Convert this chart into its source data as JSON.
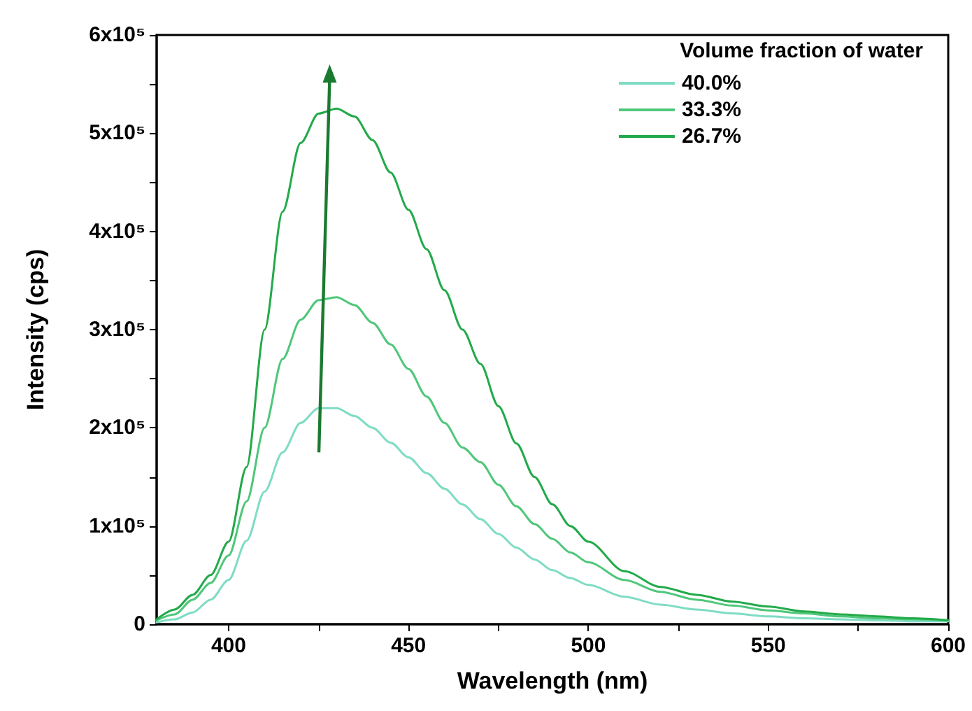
{
  "chart_data": {
    "type": "line",
    "xlabel": "Wavelength (nm)",
    "ylabel": "Intensity (cps)",
    "legend_title": "Volume fraction of water",
    "legend": "top right",
    "grid": false,
    "marker": "none",
    "line_style": "solid",
    "x": [
      380,
      385,
      390,
      395,
      400,
      405,
      410,
      415,
      420,
      425,
      430,
      435,
      440,
      445,
      450,
      455,
      460,
      465,
      470,
      475,
      480,
      485,
      490,
      495,
      500,
      510,
      520,
      530,
      540,
      550,
      560,
      570,
      580,
      590,
      600
    ],
    "xlim": [
      380,
      600
    ],
    "xticks": [
      400,
      {
        "value": 425,
        "label": null
      },
      450,
      {
        "value": 475,
        "label": null
      },
      500,
      {
        "value": 525,
        "label": null
      },
      550,
      {
        "value": 575,
        "label": null
      },
      600
    ],
    "ylim": [
      0,
      600000
    ],
    "yticks": [
      {
        "value": 0,
        "label": "0"
      },
      {
        "value": 50000,
        "label": null
      },
      {
        "value": 100000,
        "label": "1x10⁵"
      },
      {
        "value": 150000,
        "label": null
      },
      {
        "value": 200000,
        "label": "2x10⁵"
      },
      {
        "value": 250000,
        "label": null
      },
      {
        "value": 300000,
        "label": "3x10⁵"
      },
      {
        "value": 350000,
        "label": null
      },
      {
        "value": 400000,
        "label": "4x10⁵"
      },
      {
        "value": 450000,
        "label": null
      },
      {
        "value": 500000,
        "label": "5x10⁵"
      },
      {
        "value": 550000,
        "label": null
      },
      {
        "value": 600000,
        "label": "6x10⁵"
      }
    ],
    "series": [
      {
        "name": "40.0%",
        "color": "#7fdcc4",
        "values": [
          2000,
          5000,
          12000,
          25000,
          45000,
          85000,
          135000,
          175000,
          205000,
          220000,
          220000,
          212000,
          200000,
          185000,
          170000,
          154000,
          138000,
          122000,
          107000,
          92000,
          78000,
          66000,
          55000,
          47000,
          40000,
          28000,
          20000,
          15000,
          11000,
          8000,
          6000,
          5000,
          4000,
          3000,
          3000
        ]
      },
      {
        "name": "33.3%",
        "color": "#4fc77a",
        "values": [
          4000,
          10000,
          25000,
          42000,
          70000,
          125000,
          200000,
          270000,
          310000,
          330000,
          333000,
          325000,
          307000,
          285000,
          260000,
          232000,
          205000,
          180000,
          165000,
          142000,
          120000,
          102000,
          87000,
          73000,
          63000,
          45000,
          33000,
          25000,
          19000,
          14000,
          11000,
          8000,
          6000,
          5000,
          4000
        ]
      },
      {
        "name": "26.7%",
        "color": "#22aa4a",
        "values": [
          5000,
          15000,
          30000,
          50000,
          84000,
          160000,
          300000,
          420000,
          490000,
          520000,
          525000,
          517000,
          493000,
          460000,
          422000,
          382000,
          340000,
          300000,
          265000,
          222000,
          184000,
          150000,
          122000,
          100000,
          84000,
          54000,
          38000,
          30000,
          23000,
          18000,
          13000,
          10000,
          8000,
          6000,
          4000
        ]
      }
    ]
  }
}
